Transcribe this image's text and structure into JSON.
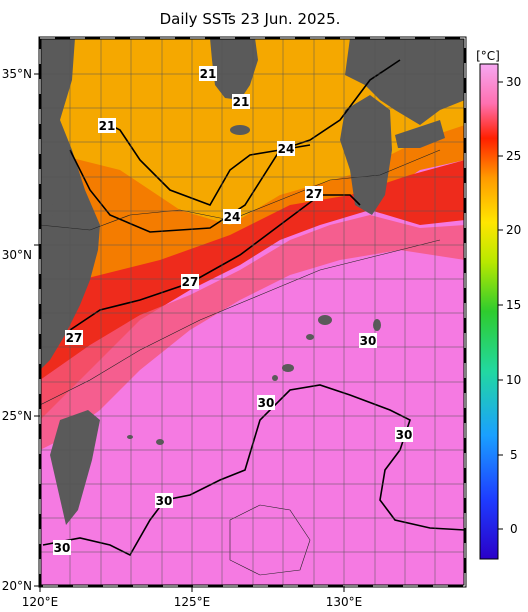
{
  "title": "Daily SSTs 23 Jun. 2025.",
  "map": {
    "lon_range": [
      120,
      134
    ],
    "lat_range": [
      20,
      36
    ],
    "lon_ticks": [
      "120°E",
      "125°E",
      "130°E"
    ],
    "lat_ticks": [
      "20°N",
      "25°N",
      "30°N",
      "35°N"
    ],
    "grid": true,
    "colors": {
      "land": "#5a5a5a",
      "sst_21": "#f5a800",
      "sst_24": "#f47c00",
      "sst_27": "#ee2b1c",
      "sst_29": "#f4a0c8",
      "sst_30": "#f27ee3"
    },
    "contour_labels": [
      "21",
      "21",
      "21",
      "24",
      "24",
      "27",
      "27",
      "27",
      "30",
      "30",
      "30",
      "30",
      "30"
    ]
  },
  "colorbar": {
    "unit": "[°C]",
    "ticks": [
      "30",
      "25",
      "20",
      "15",
      "10",
      "5",
      "0"
    ]
  }
}
